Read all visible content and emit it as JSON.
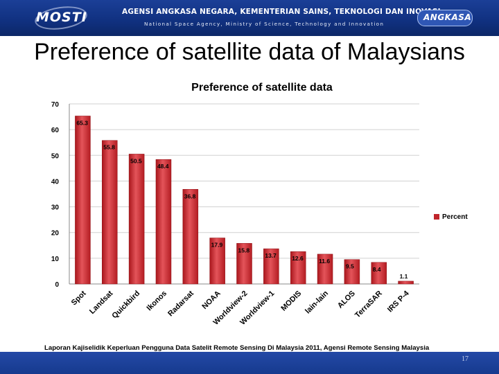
{
  "header": {
    "left_logo": "MOSTI",
    "org_title": "AGENSI ANGKASA NEGARA, KEMENTERIAN SAINS, TEKNOLOGI DAN INOVASI",
    "org_subtitle": "National Space Agency, Ministry of Science, Technology and Innovation",
    "right_logo": "ANGKASA"
  },
  "slide_title": "Preference of satellite data of Malaysians",
  "source": "Laporan Kajiselidik Keperluan Pengguna Data Satelit Remote Sensing Di Malaysia 2011, Agensi Remote Sensing Malaysia",
  "page_number": "17",
  "colors": {
    "header": "#133685",
    "bar": "#c0252b",
    "bar_highlight": "#e4545a",
    "grid": "#d0d0d0"
  },
  "chart_data": {
    "type": "bar",
    "title": "Preference of satellite data",
    "categories": [
      "Spot",
      "Landsat",
      "Quickbird",
      "Ikonos",
      "Radarsat",
      "NOAA",
      "Worldview-2",
      "Worldview-1",
      "MODIS",
      "lain-lain",
      "ALOS",
      "TerraSAR",
      "IRS P-4"
    ],
    "series": [
      {
        "name": "Percent",
        "values": [
          65.3,
          55.8,
          50.5,
          48.4,
          36.8,
          17.9,
          15.8,
          13.7,
          12.6,
          11.6,
          9.5,
          8.4,
          1.1
        ]
      }
    ],
    "ylim": [
      0,
      70
    ],
    "yticks": [
      0,
      10,
      20,
      30,
      40,
      50,
      60,
      70
    ],
    "grid": true,
    "legend_position": "right",
    "data_labels": true
  }
}
